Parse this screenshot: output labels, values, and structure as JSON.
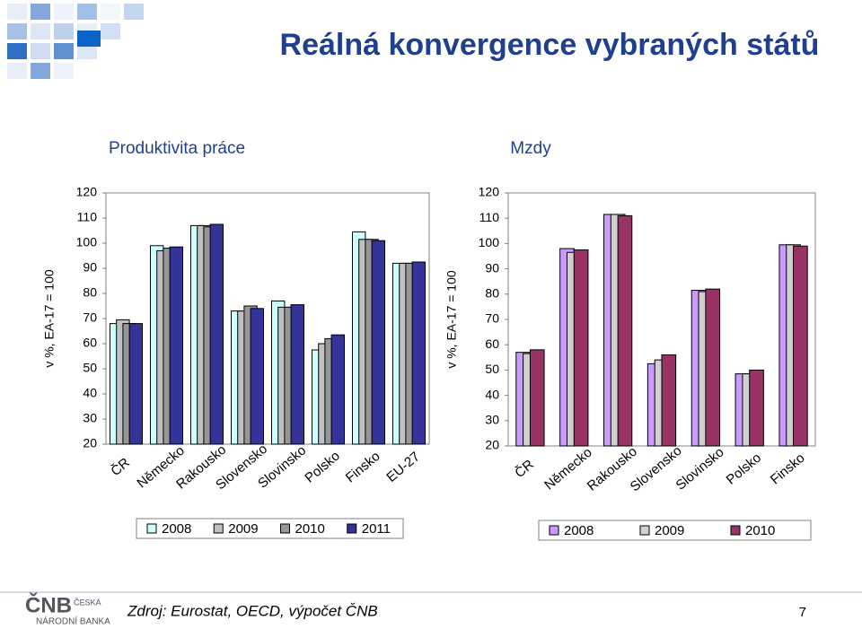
{
  "title": "Reálná konvergence vybraných států",
  "source": "Zdroj: Eurostat, OECD, výpočet ČNB",
  "page_number": "7",
  "logo": {
    "mark": "ČNB",
    "line1": "ČESKÁ",
    "line2": "NÁRODNÍ BANKA"
  },
  "chart_data": [
    {
      "type": "bar",
      "title": "Produktivita práce",
      "ylabel": "v %, EA-17 = 100",
      "categories": [
        "ČR",
        "Německo",
        "Rakousko",
        "Slovensko",
        "Slovinsko",
        "Polsko",
        "Finsko",
        "EU-27"
      ],
      "series": [
        {
          "name": "2008",
          "color": "#ccffff",
          "values": [
            68,
            99,
            107,
            73,
            77,
            57.5,
            104.5,
            92
          ]
        },
        {
          "name": "2009",
          "color": "#c0c0c0",
          "values": [
            69.5,
            97,
            107,
            73,
            74.5,
            60,
            101.5,
            92
          ]
        },
        {
          "name": "2010",
          "color": "#969696",
          "values": [
            68,
            98,
            106.5,
            75,
            74.5,
            62,
            101.5,
            92
          ]
        },
        {
          "name": "2011",
          "color": "#333399",
          "values": [
            68,
            98.5,
            107.5,
            74,
            75.5,
            63.5,
            101,
            92.5
          ]
        }
      ],
      "ylim": [
        20,
        120
      ],
      "yticks": [
        20,
        30,
        40,
        50,
        60,
        70,
        80,
        90,
        100,
        110,
        120
      ],
      "grid": false,
      "legend": "bottom"
    },
    {
      "type": "bar",
      "title": "Mzdy",
      "ylabel": "v %, EA-17 = 100",
      "categories": [
        "ČR",
        "Německo",
        "Rakousko",
        "Slovensko",
        "Slovinsko",
        "Polsko",
        "Finsko"
      ],
      "series": [
        {
          "name": "2008",
          "color": "#cc99ff",
          "values": [
            57,
            98,
            111.5,
            52.5,
            81.5,
            48.5,
            99.5
          ]
        },
        {
          "name": "2009",
          "color": "#d0d0d0",
          "values": [
            56.5,
            96.5,
            111.5,
            54,
            81,
            48.5,
            99.5
          ]
        },
        {
          "name": "2010",
          "color": "#993366",
          "values": [
            58,
            97.5,
            111,
            56,
            82,
            50,
            99
          ]
        }
      ],
      "ylim": [
        20,
        120
      ],
      "yticks": [
        20,
        30,
        40,
        50,
        60,
        70,
        80,
        90,
        100,
        110,
        120
      ],
      "grid": false,
      "legend": "bottom"
    }
  ]
}
